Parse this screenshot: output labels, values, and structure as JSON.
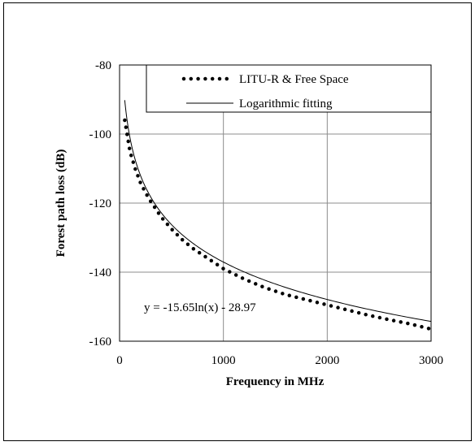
{
  "chart_data": {
    "type": "scatter",
    "title": "",
    "xlabel": "Frequency in MHz",
    "ylabel": "Forest path loss (dB)",
    "xlim": [
      0,
      3000
    ],
    "ylim": [
      -160,
      -80
    ],
    "x_ticks": [
      "0",
      "1000",
      "2000",
      "3000"
    ],
    "y_ticks": [
      "-80",
      "-100",
      "-120",
      "-140",
      "-160"
    ],
    "grid": true,
    "legend_position": "top-right",
    "series": [
      {
        "name": "LITU-R & Free Space",
        "style": "dotted",
        "x": [
          50,
          100,
          150,
          200,
          250,
          300,
          400,
          500,
          600,
          700,
          800,
          900,
          1000,
          1200,
          1400,
          1600,
          1800,
          2000,
          2200,
          2400,
          2600,
          2800,
          3000
        ],
        "y": [
          -96,
          -105,
          -110,
          -114,
          -117,
          -119.5,
          -124,
          -127.5,
          -130.5,
          -133,
          -135,
          -137,
          -139,
          -142,
          -144.5,
          -146.5,
          -148,
          -149.5,
          -151,
          -152.5,
          -153.8,
          -155,
          -156.5
        ]
      },
      {
        "name": "Logarithmic fitting",
        "style": "solid",
        "fit": {
          "a": -15.65,
          "b": -28.97,
          "x_start": 50,
          "x_end": 3000
        }
      }
    ],
    "annotations": [
      "y = -15.65ln(x) - 28.97"
    ]
  }
}
